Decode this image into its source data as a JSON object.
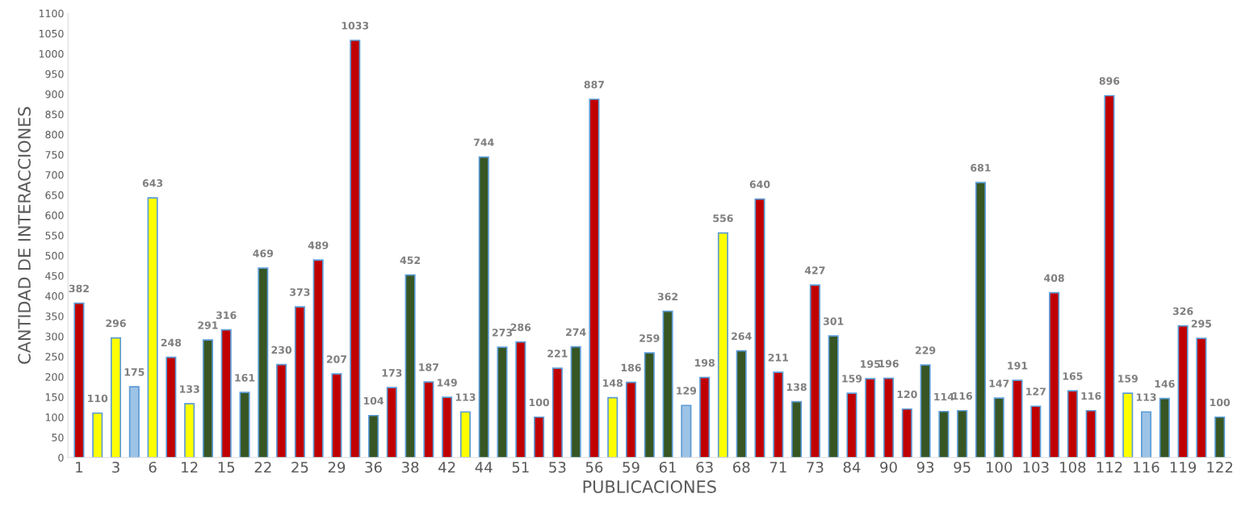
{
  "chart_data": {
    "type": "bar",
    "xlabel": "PUBLICACIONES",
    "ylabel": "CANTIDAD DE INTERACCIONES",
    "categories": [
      "1",
      null,
      "3",
      null,
      "6",
      null,
      "12",
      null,
      "15",
      null,
      "22",
      null,
      "25",
      null,
      "29",
      null,
      "36",
      null,
      "38",
      null,
      "42",
      null,
      "44",
      null,
      "51",
      null,
      "53",
      null,
      "56",
      null,
      "59",
      null,
      "61",
      null,
      "63",
      null,
      "68",
      null,
      "71",
      null,
      "73",
      null,
      "84",
      null,
      "90",
      null,
      "93",
      null,
      "95",
      null,
      "100",
      null,
      "103",
      null,
      "108",
      null,
      "112",
      null,
      "116",
      null,
      "119",
      null,
      "122"
    ],
    "values": [
      382,
      110,
      296,
      175,
      643,
      248,
      133,
      291,
      316,
      161,
      469,
      230,
      373,
      489,
      207,
      1033,
      104,
      173,
      452,
      187,
      149,
      113,
      744,
      273,
      286,
      100,
      221,
      274,
      887,
      148,
      186,
      259,
      362,
      129,
      198,
      556,
      264,
      640,
      211,
      138,
      427,
      301,
      159,
      195,
      196,
      120,
      229,
      114,
      116,
      681,
      147,
      191,
      127,
      408,
      165,
      116,
      896,
      159,
      113,
      146,
      326,
      295,
      100
    ],
    "colors": [
      "#c00000",
      "#ffff00",
      "#ffff00",
      "#9dc3e6",
      "#ffff00",
      "#c00000",
      "#ffff00",
      "#375623",
      "#c00000",
      "#375623",
      "#375623",
      "#c00000",
      "#c00000",
      "#c00000",
      "#c00000",
      "#c00000",
      "#375623",
      "#c00000",
      "#375623",
      "#c00000",
      "#c00000",
      "#ffff00",
      "#375623",
      "#375623",
      "#c00000",
      "#c00000",
      "#c00000",
      "#375623",
      "#c00000",
      "#ffff00",
      "#c00000",
      "#375623",
      "#375623",
      "#9dc3e6",
      "#c00000",
      "#ffff00",
      "#375623",
      "#c00000",
      "#c00000",
      "#375623",
      "#c00000",
      "#375623",
      "#c00000",
      "#c00000",
      "#c00000",
      "#c00000",
      "#375623",
      "#375623",
      "#375623",
      "#375623",
      "#375623",
      "#c00000",
      "#c00000",
      "#c00000",
      "#c00000",
      "#c00000",
      "#c00000",
      "#ffff00",
      "#9dc3e6",
      "#375623",
      "#c00000",
      "#c00000",
      "#375623"
    ],
    "ylim": [
      0,
      1100
    ],
    "yticks": [
      0,
      50,
      100,
      150,
      200,
      250,
      300,
      350,
      400,
      450,
      500,
      550,
      600,
      650,
      700,
      750,
      800,
      850,
      900,
      950,
      1000,
      1050,
      1100
    ],
    "data_labels": true,
    "grid": false,
    "legend": false
  }
}
